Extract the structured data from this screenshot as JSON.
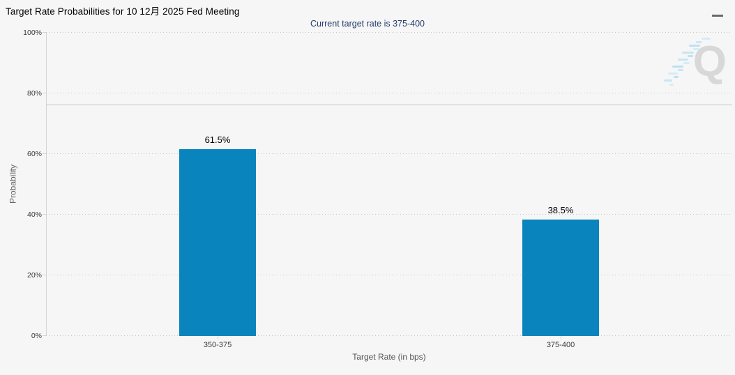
{
  "menu": {
    "icon": "hamburger-icon"
  },
  "watermark": {
    "letter": "Q"
  },
  "chart_data": {
    "type": "bar",
    "title": "Target Rate Probabilities for 10 12月 2025 Fed Meeting",
    "subtitle": "Current target rate is 375-400",
    "categories": [
      "350-375",
      "375-400"
    ],
    "values": [
      61.5,
      38.5
    ],
    "data_labels": [
      "61.5%",
      "38.5%"
    ],
    "xlabel": "Target Rate (in bps)",
    "ylabel": "Probability",
    "ylim": [
      0,
      100
    ],
    "yticks": [
      0,
      20,
      40,
      60,
      80,
      100
    ],
    "ytick_labels": [
      "0%",
      "20%",
      "40%",
      "60%",
      "80%",
      "100%"
    ],
    "grid": "horizontal-dotted",
    "legend": "none",
    "reference_line_pct": 76,
    "bar_color": "#0984bd",
    "subtitle_color": "#233d6e",
    "background_color": "#f6f6f6"
  }
}
